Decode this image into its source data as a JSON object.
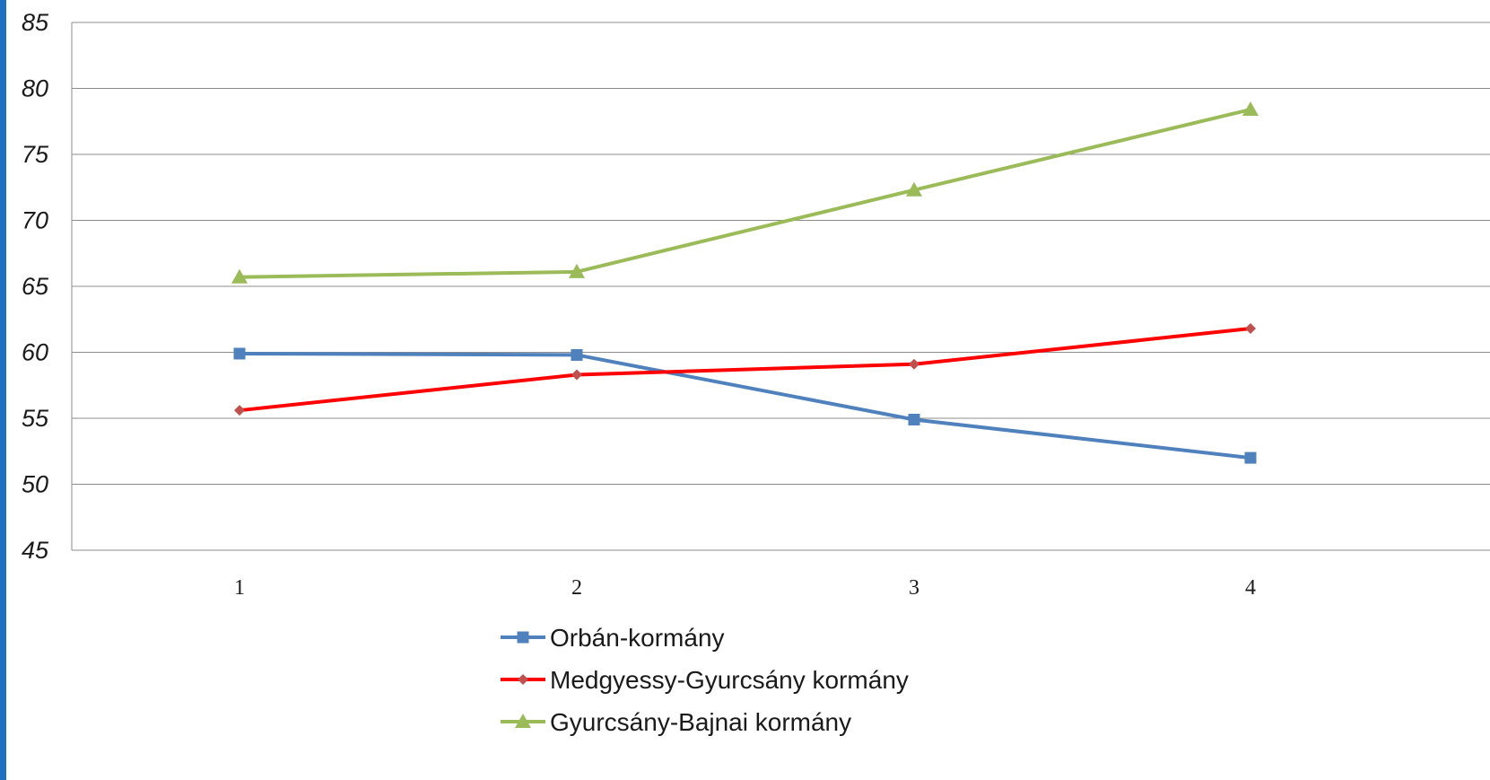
{
  "chart_data": {
    "type": "line",
    "title": "",
    "xlabel": "",
    "ylabel": "",
    "categories": [
      "1",
      "2",
      "3",
      "4"
    ],
    "ylim": [
      45,
      85
    ],
    "y_ticks": [
      "45",
      "50",
      "55",
      "60",
      "65",
      "70",
      "75",
      "80",
      "85"
    ],
    "grid": "horizontal",
    "legend_position": "bottom",
    "series": [
      {
        "name": "Orbán-kormány",
        "values": [
          59.9,
          59.8,
          54.9,
          52.0
        ],
        "color": "#4f81bd",
        "marker": "square"
      },
      {
        "name": "Medgyessy-Gyurcsány kormány",
        "values": [
          55.6,
          58.3,
          59.1,
          61.8
        ],
        "color": "#ff0000",
        "marker": "diamond"
      },
      {
        "name": "Gyurcsány-Bajnai kormány",
        "values": [
          65.7,
          66.1,
          72.3,
          78.4
        ],
        "color": "#9bbb59",
        "marker": "triangle"
      }
    ]
  }
}
